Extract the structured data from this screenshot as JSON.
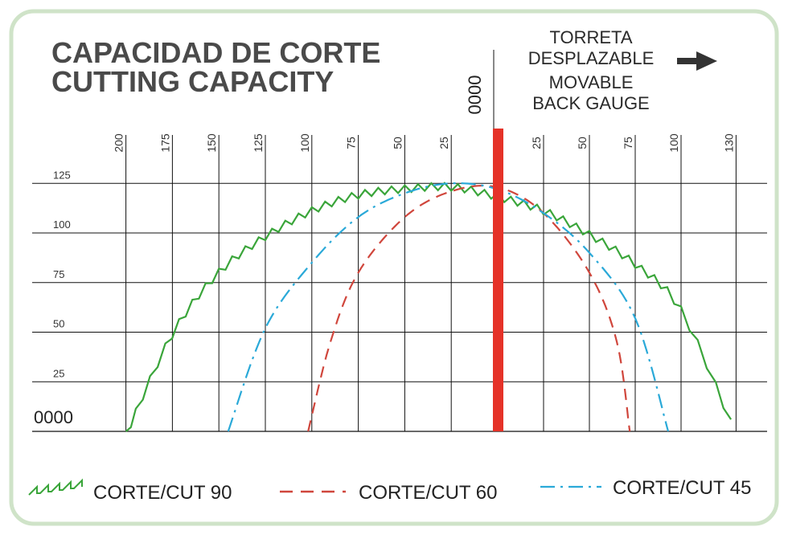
{
  "title": {
    "line1": "CAPACIDAD DE CORTE",
    "line2": "CUTTING CAPACITY"
  },
  "gauge_note": {
    "line1": "TORRETA",
    "line2": "DESPLAZABLE",
    "line3": "MOVABLE",
    "line4": "BACK GAUGE"
  },
  "colors": {
    "border": "#cfe3c8",
    "grid": "#111111",
    "gauge_bar": "#e53228",
    "arrow": "#333333"
  },
  "chart_data": {
    "type": "line",
    "x_left_ticks": [
      200,
      175,
      150,
      125,
      100,
      75,
      50,
      25
    ],
    "x_right_ticks": [
      25,
      50,
      75,
      100,
      130
    ],
    "x_zero_label": "0000",
    "y_ticks": [
      125,
      100,
      75,
      50,
      25
    ],
    "y_zero_label": "0000",
    "ylim": [
      0,
      125
    ],
    "grid": true,
    "legend_position": "bottom",
    "series": [
      {
        "name": "CORTE/CUT 90",
        "style": "zigzag",
        "color": "#3aa53a",
        "points": [
          [
            -200,
            0
          ],
          [
            -175,
            51
          ],
          [
            -150,
            82
          ],
          [
            -125,
            100
          ],
          [
            -100,
            113
          ],
          [
            -75,
            121
          ],
          [
            -50,
            124
          ],
          [
            -25,
            125
          ],
          [
            0,
            120
          ],
          [
            25,
            113
          ],
          [
            50,
            101
          ],
          [
            75,
            86
          ],
          [
            100,
            63
          ],
          [
            130,
            0
          ]
        ]
      },
      {
        "name": "CORTE/CUT 60",
        "style": "dashed",
        "color": "#d0463c",
        "points": [
          [
            -102,
            0
          ],
          [
            -90,
            45
          ],
          [
            -75,
            80
          ],
          [
            -50,
            108
          ],
          [
            -25,
            121
          ],
          [
            0,
            123
          ],
          [
            25,
            110
          ],
          [
            50,
            80
          ],
          [
            65,
            45
          ],
          [
            72,
            0
          ]
        ]
      },
      {
        "name": "CORTE/CUT 45",
        "style": "dashdot",
        "color": "#2aa9d8",
        "points": [
          [
            -145,
            0
          ],
          [
            -125,
            52
          ],
          [
            -100,
            85
          ],
          [
            -75,
            108
          ],
          [
            -50,
            120
          ],
          [
            -25,
            125
          ],
          [
            0,
            122
          ],
          [
            25,
            110
          ],
          [
            50,
            90
          ],
          [
            75,
            57
          ],
          [
            93,
            0
          ]
        ]
      }
    ]
  }
}
